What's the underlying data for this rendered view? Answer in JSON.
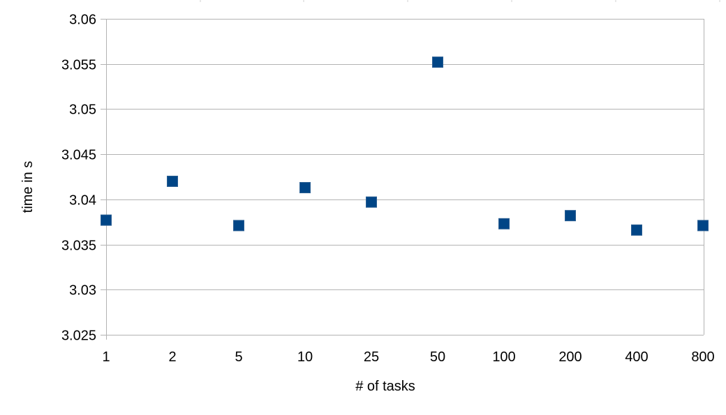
{
  "chart_data": {
    "type": "scatter",
    "title": "",
    "xlabel": "# of tasks",
    "ylabel": "time in s",
    "categories": [
      "1",
      "2",
      "5",
      "10",
      "25",
      "50",
      "100",
      "200",
      "400",
      "800"
    ],
    "series": [
      {
        "values": [
          3.0377,
          3.042,
          3.0371,
          3.0413,
          3.0397,
          3.0552,
          3.0373,
          3.0382,
          3.0366,
          3.0371
        ]
      }
    ],
    "ylim": [
      3.025,
      3.06
    ],
    "yticks": [
      "3.025",
      "3.03",
      "3.035",
      "3.04",
      "3.045",
      "3.05",
      "3.055",
      "3.06"
    ],
    "grid": true,
    "legend": "none",
    "marker": "square",
    "colors": {
      "marker": "#004586",
      "grid": "#b3b3b3",
      "axis": "#b3b3b3"
    }
  }
}
